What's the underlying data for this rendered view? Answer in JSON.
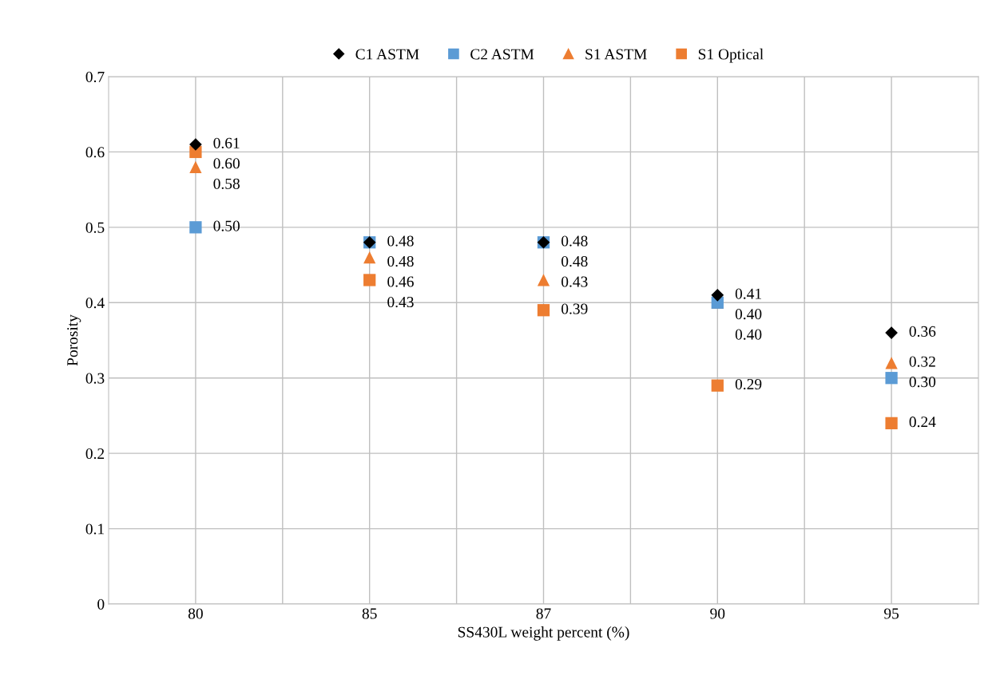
{
  "chart_data": {
    "type": "scatter",
    "xlabel": "SS430L weight percent (%)",
    "ylabel": "Porosity",
    "categories": [
      "80",
      "85",
      "87",
      "90",
      "95"
    ],
    "series": [
      {
        "name": "C1 ASTM",
        "color": "#000000",
        "marker": "diamond",
        "values": [
          0.61,
          0.48,
          0.48,
          0.41,
          0.36
        ],
        "value_labels": [
          "0.61",
          "0.48",
          "0.48",
          "0.41",
          "0.36"
        ]
      },
      {
        "name": "C2 ASTM",
        "color": "#5b9bd5",
        "marker": "square",
        "values": [
          0.5,
          0.48,
          0.48,
          0.4,
          0.3
        ],
        "value_labels": [
          "0.50",
          "0.48",
          "0.48",
          "0.40",
          "0.30"
        ]
      },
      {
        "name": "S1 ASTM",
        "color": "#ed7d31",
        "marker": "triangle",
        "values": [
          0.58,
          0.46,
          0.43,
          0.4,
          0.32
        ],
        "value_labels": [
          "0.58",
          "0.46",
          "0.43",
          "0.40",
          "0.32"
        ]
      },
      {
        "name": "S1 Optical",
        "color": "#ed7d31",
        "marker": "square",
        "values": [
          0.6,
          0.43,
          0.39,
          0.29,
          0.24
        ],
        "value_labels": [
          "0.60",
          "0.43",
          "0.39",
          "0.29",
          "0.24"
        ]
      }
    ],
    "ylim": [
      0,
      0.7
    ],
    "yticks": [
      0,
      0.1,
      0.2,
      0.3,
      0.4,
      0.5,
      0.6,
      0.7
    ],
    "grid": true,
    "legend": "top"
  }
}
